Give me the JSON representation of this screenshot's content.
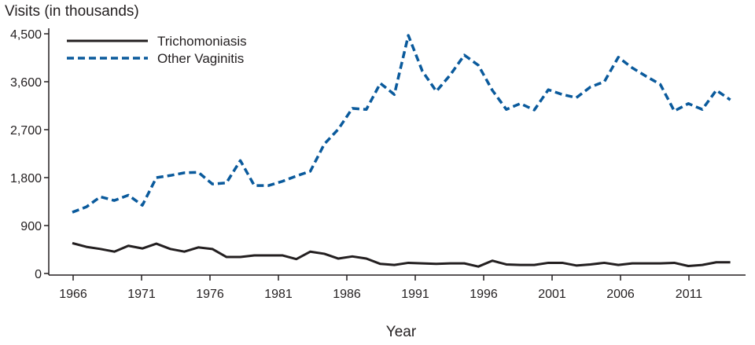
{
  "chart_data": {
    "type": "line",
    "title": "",
    "ylabel": "Visits (in thousands)",
    "xlabel": "Year",
    "ylim": [
      0,
      4500
    ],
    "xlim": [
      1966,
      2013
    ],
    "yticks": [
      "0",
      "900",
      "1,800",
      "2,700",
      "3,600",
      "4,500"
    ],
    "ytick_values": [
      0,
      900,
      1800,
      2700,
      3600,
      4500
    ],
    "xticks": [
      "1966",
      "1971",
      "1976",
      "1981",
      "1986",
      "1991",
      "1996",
      "2001",
      "2006",
      "2011"
    ],
    "xtick_values": [
      1966,
      1971,
      1976,
      1981,
      1986,
      1991,
      1996,
      2001,
      2006,
      2011
    ],
    "grid": false,
    "legend": "top-left",
    "x": [
      1966,
      1967,
      1968,
      1969,
      1970,
      1971,
      1972,
      1973,
      1974,
      1975,
      1976,
      1977,
      1978,
      1979,
      1980,
      1981,
      1982,
      1983,
      1984,
      1985,
      1986,
      1987,
      1988,
      1989,
      1990,
      1991,
      1992,
      1993,
      1994,
      1995,
      1996,
      1997,
      1998,
      1999,
      2000,
      2001,
      2002,
      2003,
      2004,
      2005,
      2006,
      2007,
      2008,
      2009,
      2010,
      2011,
      2012,
      2013
    ],
    "series": [
      {
        "name": "Trichomoniasis",
        "color": "#231f20",
        "style": "solid",
        "values": [
          570,
          500,
          460,
          410,
          520,
          470,
          560,
          460,
          410,
          490,
          460,
          310,
          310,
          340,
          340,
          340,
          270,
          410,
          370,
          280,
          320,
          280,
          180,
          160,
          200,
          190,
          180,
          190,
          190,
          130,
          240,
          170,
          160,
          160,
          200,
          200,
          150,
          170,
          200,
          160,
          190,
          190,
          190,
          200,
          140,
          160,
          210,
          210
        ]
      },
      {
        "name": "Other Vaginitis",
        "color": "#0a5a9c",
        "style": "dashed",
        "values": [
          1150,
          1250,
          1440,
          1370,
          1470,
          1280,
          1800,
          1840,
          1890,
          1900,
          1680,
          1700,
          2120,
          1650,
          1650,
          1730,
          1830,
          1920,
          2430,
          2710,
          3100,
          3080,
          3570,
          3360,
          4470,
          3800,
          3420,
          3730,
          4100,
          3910,
          3440,
          3080,
          3190,
          3070,
          3450,
          3360,
          3300,
          3500,
          3600,
          4060,
          3860,
          3700,
          3550,
          3050,
          3190,
          3080,
          3440,
          3260
        ]
      }
    ]
  }
}
